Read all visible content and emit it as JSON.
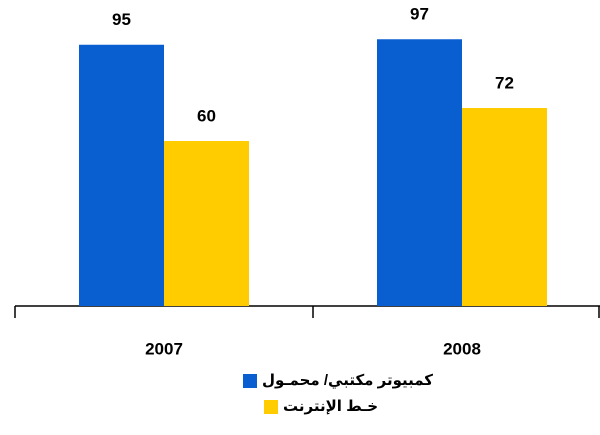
{
  "chart_data": {
    "type": "bar",
    "categories": [
      "2007",
      "2008"
    ],
    "series": [
      {
        "name": "كمبيوتر مكتبي/ محمـول",
        "color": "#0a5fd0",
        "values": [
          95,
          97
        ]
      },
      {
        "name": "خـط الإنترنت",
        "color": "#ffcc00",
        "values": [
          60,
          72
        ]
      }
    ],
    "ylim": [
      0,
      100
    ]
  }
}
